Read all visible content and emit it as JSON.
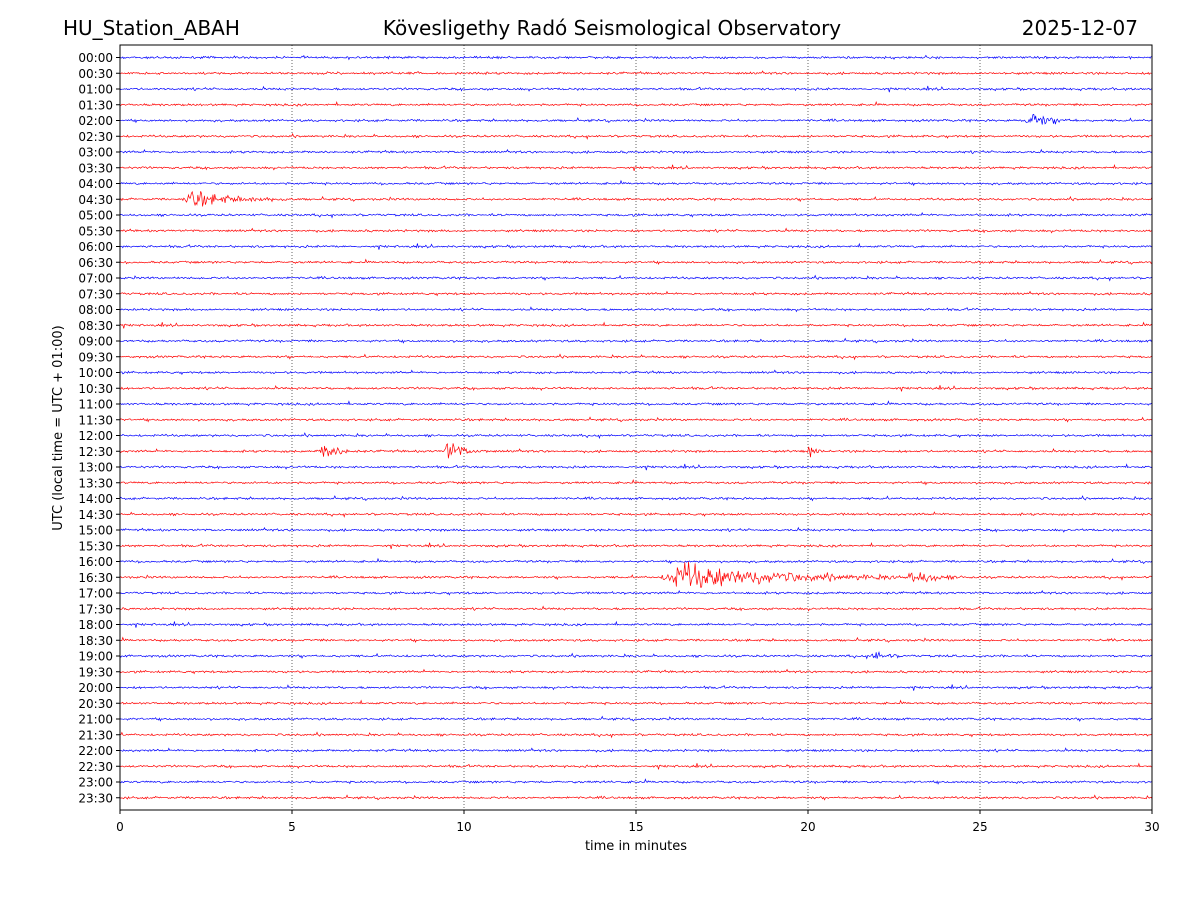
{
  "header": {
    "station": "HU_Station_ABAH",
    "observatory": "Kövesligethy Radó Seismological Observatory",
    "date": "2025-12-07"
  },
  "colors": {
    "even_trace": "#0000ff",
    "odd_trace": "#ff0000",
    "grid": "#000000"
  },
  "chart_data": {
    "type": "line",
    "title": "Kövesligethy Radó Seismological Observatory",
    "xlabel": "time in minutes",
    "ylabel": "UTC (local time = UTC + 01:00)",
    "xlim": [
      0,
      30
    ],
    "x_ticks": [
      "0",
      "5",
      "10",
      "15",
      "20",
      "25",
      "30"
    ],
    "grid": "vertical dotted at each x tick",
    "rows": [
      "00:00",
      "00:30",
      "01:00",
      "01:30",
      "02:00",
      "02:30",
      "03:00",
      "03:30",
      "04:00",
      "04:30",
      "05:00",
      "05:30",
      "06:00",
      "06:30",
      "07:00",
      "07:30",
      "08:00",
      "08:30",
      "09:00",
      "09:30",
      "10:00",
      "10:30",
      "11:00",
      "11:30",
      "12:00",
      "12:30",
      "13:00",
      "13:30",
      "14:00",
      "14:30",
      "15:00",
      "15:30",
      "16:00",
      "16:30",
      "17:00",
      "17:30",
      "18:00",
      "18:30",
      "19:00",
      "19:30",
      "20:00",
      "20:30",
      "21:00",
      "21:30",
      "22:00",
      "22:30",
      "23:00",
      "23:30"
    ],
    "series": [
      {
        "name": "trace",
        "description": "continuous seismogram, one 30-minute trace per row, alternating blue/red"
      }
    ],
    "events": [
      {
        "row": "02:00",
        "start_min": 26.3,
        "peak": 8,
        "duration_min": 1.6
      },
      {
        "row": "04:30",
        "start_min": 1.8,
        "peak": 7,
        "duration_min": 3.2
      },
      {
        "row": "12:30",
        "start_min": 5.8,
        "peak": 8,
        "duration_min": 1.2
      },
      {
        "row": "12:30",
        "start_min": 9.4,
        "peak": 9,
        "duration_min": 1.3
      },
      {
        "row": "12:30",
        "start_min": 20.0,
        "peak": 6,
        "duration_min": 0.4
      },
      {
        "row": "16:30",
        "start_min": 15.7,
        "peak": 11,
        "duration_min": 8.0
      },
      {
        "row": "16:30",
        "start_min": 22.9,
        "peak": 5,
        "duration_min": 2.0
      },
      {
        "row": "19:00",
        "start_min": 21.8,
        "peak": 5,
        "duration_min": 1.0
      }
    ]
  }
}
